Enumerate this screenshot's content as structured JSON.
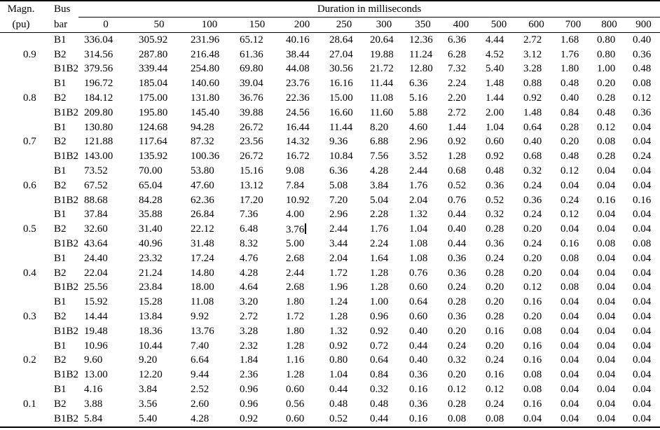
{
  "colors": {
    "text": "#000000",
    "background": "#ffffff",
    "rule": "#000000"
  },
  "table": {
    "header": {
      "col1_line1": "Magn.",
      "col1_line2": "(pu)",
      "col2_line1": "Bus",
      "col2_line2": "bar",
      "span_label": "Duration in milliseconds",
      "duration_columns": [
        "0",
        "50",
        "100",
        "150",
        "200",
        "250",
        "300",
        "350",
        "400",
        "500",
        "600",
        "700",
        "800",
        "900"
      ]
    },
    "caret": {
      "group_index": 4,
      "row_index": 1,
      "value_index": 4
    },
    "groups": [
      {
        "magnitude": "0.9",
        "rows": [
          {
            "bus": "B1",
            "values": [
              "336.04",
              "305.92",
              "231.96",
              "65.12",
              "40.16",
              "28.64",
              "20.64",
              "12.36",
              "6.36",
              "4.44",
              "2.72",
              "1.68",
              "0.80",
              "0.40"
            ]
          },
          {
            "bus": "B2",
            "values": [
              "314.56",
              "287.80",
              "216.48",
              "61.36",
              "38.44",
              "27.04",
              "19.88",
              "11.24",
              "6.28",
              "4.52",
              "3.12",
              "1.76",
              "0.80",
              "0.36"
            ]
          },
          {
            "bus": "B1B2",
            "values": [
              "379.56",
              "339.44",
              "254.80",
              "69.80",
              "44.08",
              "30.56",
              "21.72",
              "12.80",
              "7.32",
              "5.40",
              "3.28",
              "1.80",
              "1.00",
              "0.48"
            ]
          }
        ]
      },
      {
        "magnitude": "0.8",
        "rows": [
          {
            "bus": "B1",
            "values": [
              "196.72",
              "185.04",
              "140.60",
              "39.04",
              "23.76",
              "16.16",
              "11.44",
              "6.36",
              "2.24",
              "1.48",
              "0.88",
              "0.48",
              "0.20",
              "0.08"
            ]
          },
          {
            "bus": "B2",
            "values": [
              "184.12",
              "175.00",
              "131.80",
              "36.76",
              "22.36",
              "15.00",
              "11.08",
              "5.16",
              "2.20",
              "1.44",
              "0.92",
              "0.40",
              "0.28",
              "0.12"
            ]
          },
          {
            "bus": "B1B2",
            "values": [
              "209.80",
              "195.80",
              "145.40",
              "39.88",
              "24.56",
              "16.60",
              "11.60",
              "5.88",
              "2.72",
              "2.00",
              "1.48",
              "0.84",
              "0.48",
              "0.36"
            ]
          }
        ]
      },
      {
        "magnitude": "0.7",
        "rows": [
          {
            "bus": "B1",
            "values": [
              "130.80",
              "124.68",
              "94.28",
              "26.72",
              "16.44",
              "11.44",
              "8.20",
              "4.60",
              "1.44",
              "1.04",
              "0.64",
              "0.28",
              "0.12",
              "0.04"
            ]
          },
          {
            "bus": "B2",
            "values": [
              "121.88",
              "117.64",
              "87.32",
              "23.56",
              "14.32",
              "9.36",
              "6.88",
              "2.96",
              "0.92",
              "0.60",
              "0.40",
              "0.20",
              "0.08",
              "0.04"
            ]
          },
          {
            "bus": "B1B2",
            "values": [
              "143.00",
              "135.92",
              "100.36",
              "26.72",
              "16.72",
              "10.84",
              "7.56",
              "3.52",
              "1.28",
              "0.92",
              "0.68",
              "0.48",
              "0.28",
              "0.24"
            ]
          }
        ]
      },
      {
        "magnitude": "0.6",
        "rows": [
          {
            "bus": "B1",
            "values": [
              "73.52",
              "70.00",
              "53.80",
              "15.16",
              "9.08",
              "6.36",
              "4.28",
              "2.44",
              "0.68",
              "0.48",
              "0.32",
              "0.12",
              "0.04",
              "0.04"
            ]
          },
          {
            "bus": "B2",
            "values": [
              "67.52",
              "65.04",
              "47.60",
              "13.12",
              "7.84",
              "5.08",
              "3.84",
              "1.76",
              "0.52",
              "0.36",
              "0.24",
              "0.04",
              "0.04",
              "0.04"
            ]
          },
          {
            "bus": "B1B2",
            "values": [
              "88.68",
              "84.28",
              "62.36",
              "17.20",
              "10.92",
              "7.20",
              "5.04",
              "2.04",
              "0.76",
              "0.52",
              "0.36",
              "0.24",
              "0.16",
              "0.16"
            ]
          }
        ]
      },
      {
        "magnitude": "0.5",
        "rows": [
          {
            "bus": "B1",
            "values": [
              "37.84",
              "35.88",
              "26.84",
              "7.36",
              "4.00",
              "2.96",
              "2.28",
              "1.32",
              "0.44",
              "0.32",
              "0.24",
              "0.12",
              "0.04",
              "0.04"
            ]
          },
          {
            "bus": "B2",
            "values": [
              "32.60",
              "31.40",
              "22.12",
              "6.48",
              "3.76",
              "2.44",
              "1.76",
              "1.04",
              "0.40",
              "0.28",
              "0.20",
              "0.04",
              "0.04",
              "0.04"
            ]
          },
          {
            "bus": "B1B2",
            "values": [
              "43.64",
              "40.96",
              "31.48",
              "8.32",
              "5.00",
              "3.44",
              "2.24",
              "1.08",
              "0.44",
              "0.36",
              "0.24",
              "0.16",
              "0.08",
              "0.08"
            ]
          }
        ]
      },
      {
        "magnitude": "0.4",
        "rows": [
          {
            "bus": "B1",
            "values": [
              "24.40",
              "23.32",
              "17.24",
              "4.76",
              "2.68",
              "2.04",
              "1.64",
              "1.08",
              "0.36",
              "0.24",
              "0.20",
              "0.08",
              "0.04",
              "0.04"
            ]
          },
          {
            "bus": "B2",
            "values": [
              "22.04",
              "21.24",
              "14.80",
              "4.28",
              "2.44",
              "1.72",
              "1.28",
              "0.76",
              "0.36",
              "0.28",
              "0.20",
              "0.04",
              "0.04",
              "0.04"
            ]
          },
          {
            "bus": "B1B2",
            "values": [
              "25.56",
              "23.84",
              "18.00",
              "4.64",
              "2.68",
              "1.96",
              "1.28",
              "0.60",
              "0.24",
              "0.20",
              "0.12",
              "0.08",
              "0.04",
              "0.04"
            ]
          }
        ]
      },
      {
        "magnitude": "0.3",
        "rows": [
          {
            "bus": "B1",
            "values": [
              "15.92",
              "15.28",
              "11.08",
              "3.20",
              "1.80",
              "1.24",
              "1.00",
              "0.64",
              "0.28",
              "0.20",
              "0.16",
              "0.04",
              "0.04",
              "0.04"
            ]
          },
          {
            "bus": "B2",
            "values": [
              "14.44",
              "13.84",
              "9.92",
              "2.72",
              "1.72",
              "1.28",
              "0.96",
              "0.60",
              "0.36",
              "0.28",
              "0.20",
              "0.04",
              "0.04",
              "0.04"
            ]
          },
          {
            "bus": "B1B2",
            "values": [
              "19.48",
              "18.36",
              "13.76",
              "3.28",
              "1.80",
              "1.32",
              "0.92",
              "0.40",
              "0.20",
              "0.16",
              "0.08",
              "0.04",
              "0.04",
              "0.04"
            ]
          }
        ]
      },
      {
        "magnitude": "0.2",
        "rows": [
          {
            "bus": "B1",
            "values": [
              "10.96",
              "10.44",
              "7.40",
              "2.32",
              "1.28",
              "0.92",
              "0.72",
              "0.44",
              "0.24",
              "0.20",
              "0.16",
              "0.04",
              "0.04",
              "0.04"
            ]
          },
          {
            "bus": "B2",
            "values": [
              "9.60",
              "9.20",
              "6.64",
              "1.84",
              "1.16",
              "0.80",
              "0.64",
              "0.40",
              "0.32",
              "0.24",
              "0.16",
              "0.04",
              "0.04",
              "0.04"
            ]
          },
          {
            "bus": "B1B2",
            "values": [
              "13.00",
              "12.20",
              "9.44",
              "2.36",
              "1.28",
              "1.04",
              "0.84",
              "0.36",
              "0.20",
              "0.16",
              "0.08",
              "0.04",
              "0.04",
              "0.04"
            ]
          }
        ]
      },
      {
        "magnitude": "0.1",
        "rows": [
          {
            "bus": "B1",
            "values": [
              "4.16",
              "3.84",
              "2.52",
              "0.96",
              "0.60",
              "0.44",
              "0.32",
              "0.16",
              "0.12",
              "0.12",
              "0.08",
              "0.04",
              "0.04",
              "0.04"
            ]
          },
          {
            "bus": "B2",
            "values": [
              "3.88",
              "3.56",
              "2.60",
              "0.96",
              "0.56",
              "0.48",
              "0.48",
              "0.36",
              "0.28",
              "0.24",
              "0.16",
              "0.04",
              "0.04",
              "0.04"
            ]
          },
          {
            "bus": "B1B2",
            "values": [
              "5.84",
              "5.40",
              "4.28",
              "0.92",
              "0.60",
              "0.52",
              "0.44",
              "0.16",
              "0.08",
              "0.08",
              "0.04",
              "0.04",
              "0.04",
              "0.04"
            ]
          }
        ]
      }
    ]
  }
}
